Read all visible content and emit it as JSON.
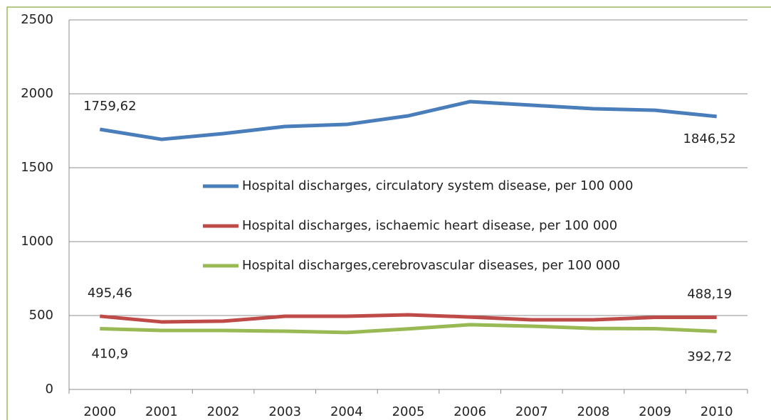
{
  "chart_data": {
    "type": "line",
    "categories": [
      "2000",
      "2001",
      "2002",
      "2003",
      "2004",
      "2005",
      "2006",
      "2007",
      "2008",
      "2009",
      "2010"
    ],
    "series": [
      {
        "name": "Hospital discharges, circulatory system disease, per 100 000",
        "color": "#4a7ebb",
        "values": [
          1759.62,
          1692,
          1731,
          1779,
          1793,
          1851,
          1947,
          1923,
          1899,
          1889,
          1846.52
        ],
        "value_labels": [
          "1759,62",
          null,
          null,
          null,
          null,
          null,
          null,
          null,
          null,
          null,
          "1846,52"
        ]
      },
      {
        "name": "Hospital discharges, ischaemic heart disease, per 100 000",
        "color": "#be4b48",
        "values": [
          495.46,
          457,
          462,
          495,
          495,
          505,
          490,
          471,
          471,
          488,
          488.19
        ],
        "value_labels": [
          "495,46",
          null,
          null,
          null,
          null,
          null,
          null,
          null,
          null,
          null,
          "488,19"
        ]
      },
      {
        "name": "Hospital discharges,cerebrovascular diseases, per 100 000",
        "color": "#98b954",
        "values": [
          410.9,
          399,
          399,
          394,
          385,
          410,
          438,
          428,
          413,
          411,
          392.72
        ],
        "value_labels": [
          "410,9",
          null,
          null,
          null,
          null,
          null,
          null,
          null,
          null,
          null,
          "392,72"
        ]
      }
    ],
    "ylim": [
      0,
      2500
    ],
    "yticks": [
      0,
      500,
      1000,
      1500,
      2000,
      2500
    ],
    "grid": true
  }
}
